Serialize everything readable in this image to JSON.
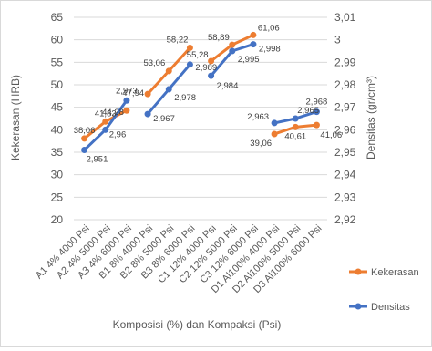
{
  "chart_data": {
    "type": "line",
    "xlabel": "Komposisi (%) dan Kompaksi (Psi)",
    "ylabel": "Kekerasan (HRB)",
    "y2label": "Densitas (gr/cm³)",
    "ylim": [
      20,
      65
    ],
    "y2lim": [
      2.92,
      3.01
    ],
    "y_ticks": [
      "20",
      "25",
      "30",
      "35",
      "40",
      "45",
      "50",
      "55",
      "60",
      "65"
    ],
    "y2_ticks": [
      "2,92",
      "2,93",
      "2,94",
      "2,95",
      "2,96",
      "2,97",
      "2,98",
      "2,99",
      "3",
      "3,01"
    ],
    "categories": [
      "A1  4% 4000 Psi",
      "A2  4% 5000 Psi",
      "A3  4% 6000 Psi",
      "B1  8% 4000 Psi",
      "B2  8% 5000 Psi",
      "B3  8% 6000 Psi",
      "C1  12% 4000 Psi",
      "C2  12% 5000 Psi",
      "C3  12% 6000 Psi",
      "D1 Al100% 4000 Psi",
      "D2 Al100% 5000 Psi",
      "D3 Al100% 6000 Psi"
    ],
    "groups": [
      [
        0,
        1,
        2
      ],
      [
        3,
        4,
        5
      ],
      [
        6,
        7,
        8
      ],
      [
        9,
        10,
        11
      ]
    ],
    "series": [
      {
        "name": "Kekerasan",
        "axis": "left",
        "color": "#ED7D31",
        "values": [
          38.06,
          41.83,
          44.28,
          47.94,
          53.06,
          58.22,
          55.28,
          58.89,
          61.06,
          39.06,
          40.61,
          41.06
        ],
        "labels": [
          "38,06",
          "41,83",
          "44,28",
          "47,94",
          "53,06",
          "58,22",
          "55,28",
          "58,89",
          "61,06",
          "39,06",
          "40,61",
          "41,06"
        ]
      },
      {
        "name": "Densitas",
        "axis": "right",
        "color": "#4472C4",
        "values": [
          2.951,
          2.96,
          2.973,
          2.967,
          2.978,
          2.989,
          2.984,
          2.995,
          2.998,
          2.963,
          2.965,
          2.968
        ],
        "labels": [
          "2,951",
          "2,96",
          "2,973",
          "2,967",
          "2,978",
          "2,989",
          "2,984",
          "2,995",
          "2,998",
          "2,963",
          "2,965",
          "2,968"
        ]
      }
    ],
    "legend": "right"
  }
}
